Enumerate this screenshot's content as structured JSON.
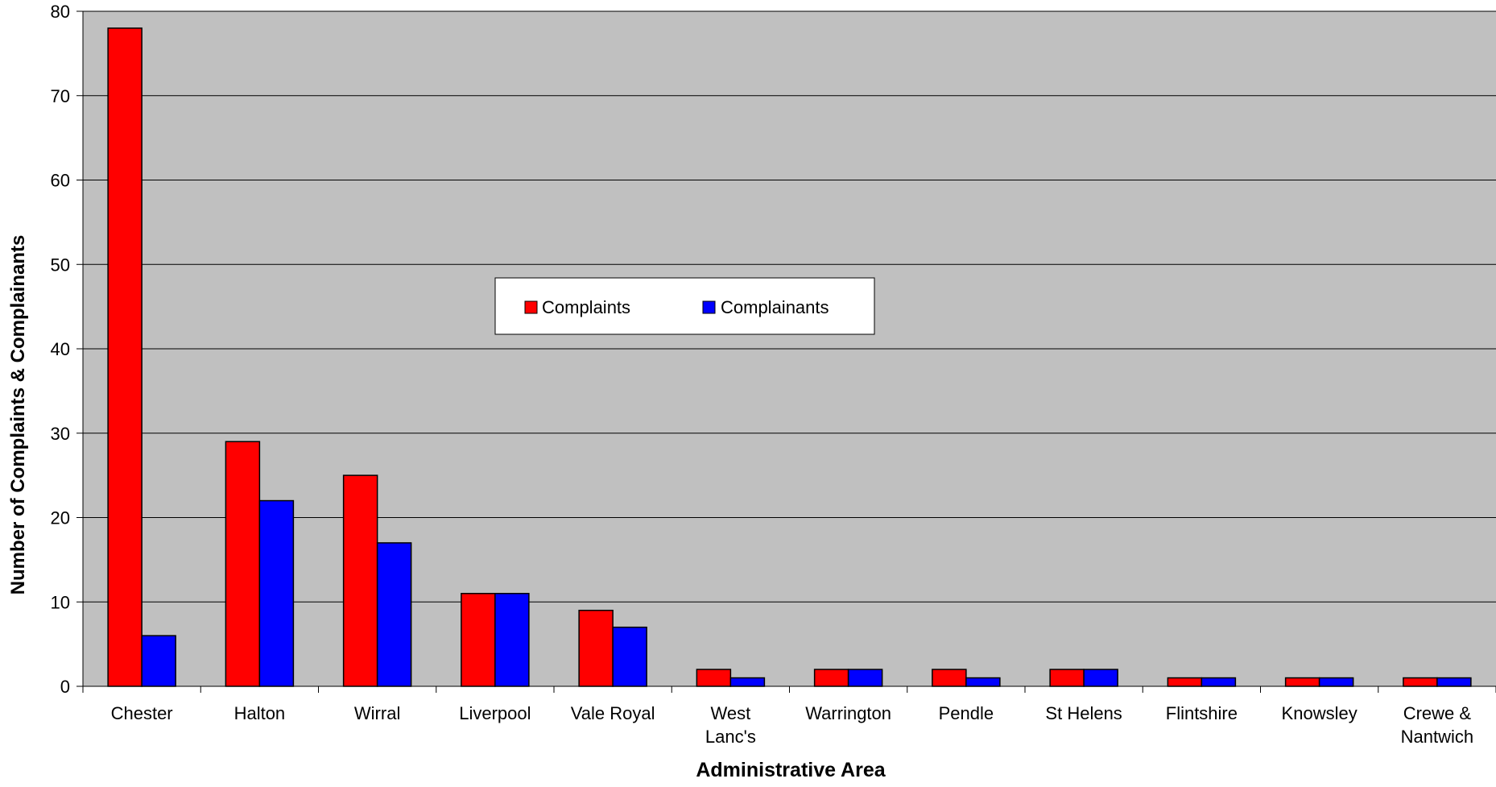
{
  "chart_data": {
    "type": "bar",
    "title": "",
    "xlabel": "Administrative Area",
    "ylabel": "Number of Complaints & Complainants",
    "ylim": [
      0,
      80
    ],
    "yticks": [
      0,
      10,
      20,
      30,
      40,
      50,
      60,
      70,
      80
    ],
    "grid": true,
    "legend_position": "center",
    "categories": [
      [
        "Chester"
      ],
      [
        "Halton"
      ],
      [
        "Wirral"
      ],
      [
        "Liverpool"
      ],
      [
        "Vale Royal"
      ],
      [
        "West",
        "Lanc's"
      ],
      [
        "Warrington"
      ],
      [
        "Pendle"
      ],
      [
        "St Helens"
      ],
      [
        "Flintshire"
      ],
      [
        "Knowsley"
      ],
      [
        "Crewe &",
        "Nantwich"
      ]
    ],
    "series": [
      {
        "name": "Complaints",
        "color": "#ff0000",
        "values": [
          78,
          29,
          25,
          11,
          9,
          2,
          2,
          2,
          2,
          1,
          1,
          1
        ]
      },
      {
        "name": "Complainants",
        "color": "#0000ff",
        "values": [
          6,
          22,
          17,
          11,
          7,
          1,
          2,
          1,
          2,
          1,
          1,
          1
        ]
      }
    ],
    "plot_background": "#c0c0c0",
    "gridline_color": "#000000"
  }
}
